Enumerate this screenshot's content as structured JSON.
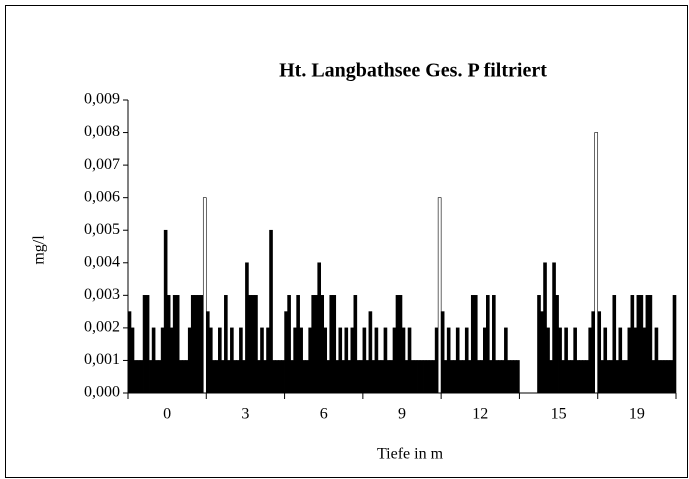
{
  "chart_data": {
    "type": "grouped-bar",
    "title": "Ht. Langbathsee  Ges. P filtriert",
    "y_label": "mg/l",
    "x_label": "Tiefe in m",
    "color": "#000000",
    "ylim": [
      0,
      0.009
    ],
    "yticks": [
      {
        "value": 0,
        "label": "0,000"
      },
      {
        "value": 0.001,
        "label": "0,001"
      },
      {
        "value": 0.002,
        "label": "0,002"
      },
      {
        "value": 0.003,
        "label": "0,003"
      },
      {
        "value": 0.004,
        "label": "0,004"
      },
      {
        "value": 0.005,
        "label": "0,005"
      },
      {
        "value": 0.006,
        "label": "0,006"
      },
      {
        "value": 0.007,
        "label": "0,007"
      },
      {
        "value": 0.008,
        "label": "0,008"
      },
      {
        "value": 0.009,
        "label": "0,009"
      }
    ],
    "groups": [
      {
        "label": "0",
        "values": [
          0.0025,
          0.002,
          0.001,
          0.001,
          0.001,
          0.003,
          0.003,
          0.001,
          0.002,
          0.001,
          0.001,
          0.002,
          0.005,
          0.003,
          0.002,
          0.003,
          0.003,
          0.001,
          0.001,
          0.001,
          0.002,
          0.003,
          0.003,
          0.003,
          0.003,
          0.006
        ],
        "highlight": {
          "index": 25,
          "color": "#ffffff"
        }
      },
      {
        "label": "3",
        "values": [
          0.0025,
          0.002,
          0.001,
          0.001,
          0.002,
          0.001,
          0.003,
          0.001,
          0.002,
          0.001,
          0.001,
          0.002,
          0.001,
          0.004,
          0.003,
          0.003,
          0.003,
          0.001,
          0.002,
          0.001,
          0.002,
          0.005,
          0.001,
          0.001,
          0.001,
          0.001
        ]
      },
      {
        "label": "6",
        "values": [
          0.0025,
          0.003,
          0.001,
          0.002,
          0.003,
          0.002,
          0.001,
          0.001,
          0.002,
          0.003,
          0.003,
          0.004,
          0.003,
          0.002,
          0.001,
          0.003,
          0.003,
          0.001,
          0.002,
          0.001,
          0.002,
          0.001,
          0.002,
          0.003,
          0.001,
          0.001
        ]
      },
      {
        "label": "9",
        "values": [
          0.002,
          0.001,
          0.0025,
          0.001,
          0.002,
          0.001,
          0.001,
          0.002,
          0.001,
          0.001,
          0.002,
          0.003,
          0.003,
          0.002,
          0.001,
          0.002,
          0.001,
          0.001,
          0.001,
          0.001,
          0.001,
          0.001,
          0.001,
          0.001,
          0.002,
          0.006
        ],
        "highlight": {
          "index": 25,
          "color": "#ffffff"
        }
      },
      {
        "label": "12",
        "values": [
          0.0025,
          0.001,
          0.002,
          0.001,
          0.001,
          0.002,
          0.001,
          0.001,
          0.002,
          0.001,
          0.003,
          0.003,
          0.001,
          0.001,
          0.002,
          0.003,
          0.001,
          0.003,
          0.001,
          0.001,
          0.001,
          0.002,
          0.001,
          0.001,
          0.001,
          0.001
        ]
      },
      {
        "label": "15",
        "values": [
          null,
          null,
          null,
          null,
          null,
          null,
          0.003,
          0.0025,
          0.004,
          0.002,
          0.001,
          0.004,
          0.003,
          0.002,
          0.001,
          0.002,
          0.001,
          0.001,
          0.002,
          0.001,
          0.001,
          0.001,
          0.001,
          0.002,
          0.0025,
          0.008
        ],
        "highlight": {
          "index": 25,
          "color": "#ffffff"
        }
      },
      {
        "label": "19",
        "values": [
          0.0025,
          0.001,
          0.002,
          0.001,
          0.001,
          0.003,
          0.001,
          0.002,
          0.001,
          0.001,
          0.002,
          0.003,
          0.002,
          0.003,
          0.003,
          0.002,
          0.003,
          0.003,
          0.001,
          0.002,
          0.001,
          0.001,
          0.001,
          0.001,
          0.001,
          0.003
        ]
      }
    ]
  }
}
